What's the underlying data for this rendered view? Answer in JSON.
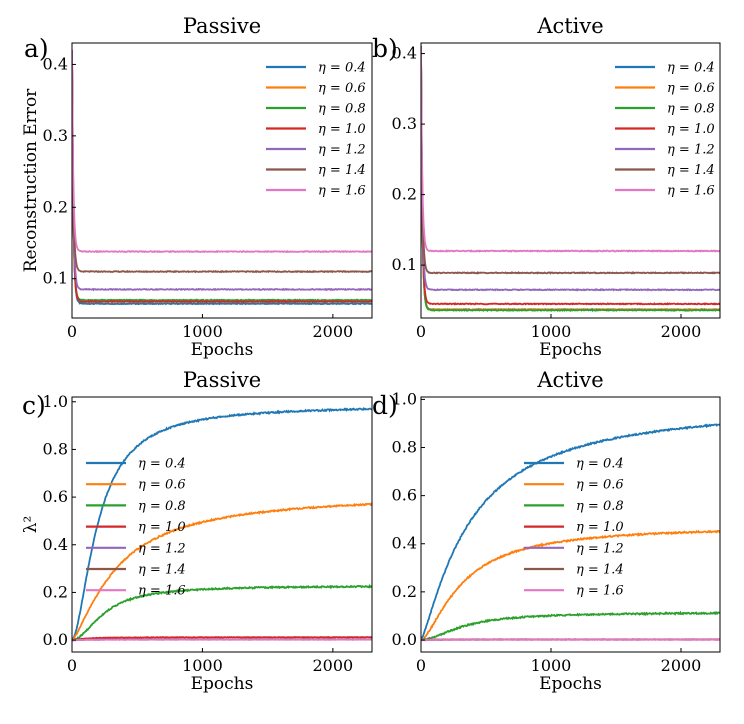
{
  "colors": {
    "eta_0_4": "#1f77b4",
    "eta_0_6": "#ff7f0e",
    "eta_0_8": "#2ca02c",
    "eta_1_0": "#d62728",
    "eta_1_2": "#9467bd",
    "eta_1_4": "#8c564b",
    "eta_1_6": "#e377c2"
  },
  "chart_data": [
    {
      "panel": "a)",
      "type": "line",
      "title": "Passive",
      "xlabel": "Epochs",
      "ylabel": "Reconstruction Error",
      "xlim": [
        0,
        2300
      ],
      "ylim": [
        0.045,
        0.43
      ],
      "xticks": [
        "0",
        "1000",
        "2000"
      ],
      "yticks": [
        "0.1",
        "0.2",
        "0.3",
        "0.4"
      ],
      "legend_position": "top-right",
      "series": [
        {
          "name": "η = 0.4",
          "color_key": "eta_0_4",
          "start": 0.42,
          "end": 0.065,
          "tau": 10
        },
        {
          "name": "η = 0.6",
          "color_key": "eta_0_6",
          "start": 0.42,
          "end": 0.068,
          "tau": 10
        },
        {
          "name": "η = 0.8",
          "color_key": "eta_0_8",
          "start": 0.42,
          "end": 0.07,
          "tau": 10
        },
        {
          "name": "η = 1.0",
          "color_key": "eta_1_0",
          "start": 0.42,
          "end": 0.068,
          "tau": 10
        },
        {
          "name": "η = 1.2",
          "color_key": "eta_1_2",
          "start": 0.42,
          "end": 0.085,
          "tau": 10
        },
        {
          "name": "η = 1.4",
          "color_key": "eta_1_4",
          "start": 0.42,
          "end": 0.11,
          "tau": 10
        },
        {
          "name": "η = 1.6",
          "color_key": "eta_1_6",
          "start": 0.42,
          "end": 0.138,
          "tau": 10
        }
      ]
    },
    {
      "panel": "b)",
      "type": "line",
      "title": "Active",
      "xlabel": "Epochs",
      "ylabel": "",
      "xlim": [
        0,
        2300
      ],
      "ylim": [
        0.025,
        0.415
      ],
      "xticks": [
        "0",
        "1000",
        "2000"
      ],
      "yticks": [
        "0.1",
        "0.2",
        "0.3",
        "0.4"
      ],
      "legend_position": "top-right",
      "series": [
        {
          "name": "η = 0.4",
          "color_key": "eta_0_4",
          "start": 0.41,
          "end": 0.037,
          "tau": 10
        },
        {
          "name": "η = 0.6",
          "color_key": "eta_0_6",
          "start": 0.41,
          "end": 0.037,
          "tau": 10
        },
        {
          "name": "η = 0.8",
          "color_key": "eta_0_8",
          "start": 0.41,
          "end": 0.036,
          "tau": 10
        },
        {
          "name": "η = 1.0",
          "color_key": "eta_1_0",
          "start": 0.41,
          "end": 0.045,
          "tau": 10
        },
        {
          "name": "η = 1.2",
          "color_key": "eta_1_2",
          "start": 0.41,
          "end": 0.065,
          "tau": 10
        },
        {
          "name": "η = 1.4",
          "color_key": "eta_1_4",
          "start": 0.41,
          "end": 0.089,
          "tau": 10
        },
        {
          "name": "η = 1.6",
          "color_key": "eta_1_6",
          "start": 0.41,
          "end": 0.12,
          "tau": 10
        }
      ]
    },
    {
      "panel": "c)",
      "type": "line",
      "title": "Passive",
      "xlabel": "Epochs",
      "ylabel": "λ²",
      "xlim": [
        0,
        2300
      ],
      "ylim": [
        -0.05,
        1.02
      ],
      "xticks": [
        "0",
        "1000",
        "2000"
      ],
      "yticks": [
        "0.0",
        "0.2",
        "0.4",
        "0.6",
        "0.8",
        "1.0"
      ],
      "legend_position": "center-left",
      "series": [
        {
          "name": "η = 0.4",
          "color_key": "eta_0_4",
          "plateau": 0.985,
          "k": 200,
          "n": 1.7
        },
        {
          "name": "η = 0.6",
          "color_key": "eta_0_6",
          "plateau": 0.615,
          "k": 350,
          "n": 1.35
        },
        {
          "name": "η = 0.8",
          "color_key": "eta_0_8",
          "plateau": 0.228,
          "k": 250,
          "n": 1.9
        },
        {
          "name": "η = 1.0",
          "color_key": "eta_1_0",
          "plateau": 0.012,
          "k": 100,
          "n": 1.5
        },
        {
          "name": "η = 1.2",
          "color_key": "eta_1_2",
          "plateau": 0.003,
          "k": 100,
          "n": 1.5
        },
        {
          "name": "η = 1.4",
          "color_key": "eta_1_4",
          "plateau": 0.003,
          "k": 100,
          "n": 1.5
        },
        {
          "name": "η = 1.6",
          "color_key": "eta_1_6",
          "plateau": 0.002,
          "k": 100,
          "n": 1.5
        }
      ]
    },
    {
      "panel": "d)",
      "type": "line",
      "title": "Active",
      "xlabel": "Epochs",
      "ylabel": "",
      "xlim": [
        0,
        2300
      ],
      "ylim": [
        -0.05,
        1.01
      ],
      "xticks": [
        "0",
        "1000",
        "2000"
      ],
      "yticks": [
        "0.0",
        "0.2",
        "0.4",
        "0.6",
        "0.8",
        "1.0"
      ],
      "legend_position": "center",
      "series": [
        {
          "name": "η = 0.4",
          "color_key": "eta_0_4",
          "plateau": 0.99,
          "k": 380,
          "n": 1.25
        },
        {
          "name": "η = 0.6",
          "color_key": "eta_0_6",
          "plateau": 0.475,
          "k": 320,
          "n": 1.5
        },
        {
          "name": "η = 0.8",
          "color_key": "eta_0_8",
          "plateau": 0.115,
          "k": 330,
          "n": 1.8
        },
        {
          "name": "η = 1.0",
          "color_key": "eta_1_0",
          "plateau": 0.002,
          "k": 100,
          "n": 1.5
        },
        {
          "name": "η = 1.2",
          "color_key": "eta_1_2",
          "plateau": 0.002,
          "k": 100,
          "n": 1.5
        },
        {
          "name": "η = 1.4",
          "color_key": "eta_1_4",
          "plateau": 0.002,
          "k": 100,
          "n": 1.5
        },
        {
          "name": "η = 1.6",
          "color_key": "eta_1_6",
          "plateau": 0.001,
          "k": 100,
          "n": 1.5
        }
      ]
    }
  ]
}
